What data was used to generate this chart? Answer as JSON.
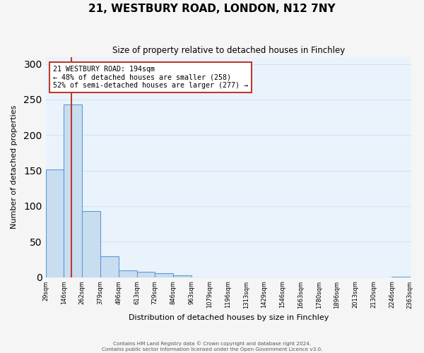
{
  "title": "21, WESTBURY ROAD, LONDON, N12 7NY",
  "subtitle": "Size of property relative to detached houses in Finchley",
  "xlabel": "Distribution of detached houses by size in Finchley",
  "ylabel": "Number of detached properties",
  "bar_left_edges": [
    29,
    146,
    262,
    379,
    496,
    613,
    729,
    846,
    963,
    1079,
    1196,
    1313,
    1429,
    1546,
    1663,
    1780,
    1896,
    2013,
    2130,
    2246
  ],
  "bar_heights": [
    152,
    243,
    93,
    29,
    9,
    8,
    6,
    3,
    0,
    0,
    0,
    0,
    0,
    0,
    0,
    0,
    0,
    0,
    0,
    1
  ],
  "bin_width": 117,
  "bar_color": "#c9ddf0",
  "bar_edge_color": "#5b9bd5",
  "ylim": [
    0,
    310
  ],
  "yticks": [
    0,
    50,
    100,
    150,
    200,
    250,
    300
  ],
  "xtick_labels": [
    "29sqm",
    "146sqm",
    "262sqm",
    "379sqm",
    "496sqm",
    "613sqm",
    "729sqm",
    "846sqm",
    "963sqm",
    "1079sqm",
    "1196sqm",
    "1313sqm",
    "1429sqm",
    "1546sqm",
    "1663sqm",
    "1780sqm",
    "1896sqm",
    "2013sqm",
    "2130sqm",
    "2246sqm",
    "2363sqm"
  ],
  "property_size": 194,
  "vline_x": 194,
  "vline_color": "#c0392b",
  "annotation_title": "21 WESTBURY ROAD: 194sqm",
  "annotation_line1": "← 48% of detached houses are smaller (258)",
  "annotation_line2": "52% of semi-detached houses are larger (277) →",
  "annotation_box_color": "#ffffff",
  "annotation_box_edge": "#c0392b",
  "grid_color": "#d0e4f7",
  "background_color": "#eaf3fb",
  "fig_background": "#f5f5f5",
  "footer1": "Contains HM Land Registry data © Crown copyright and database right 2024.",
  "footer2": "Contains public sector information licensed under the Open Government Licence v3.0."
}
